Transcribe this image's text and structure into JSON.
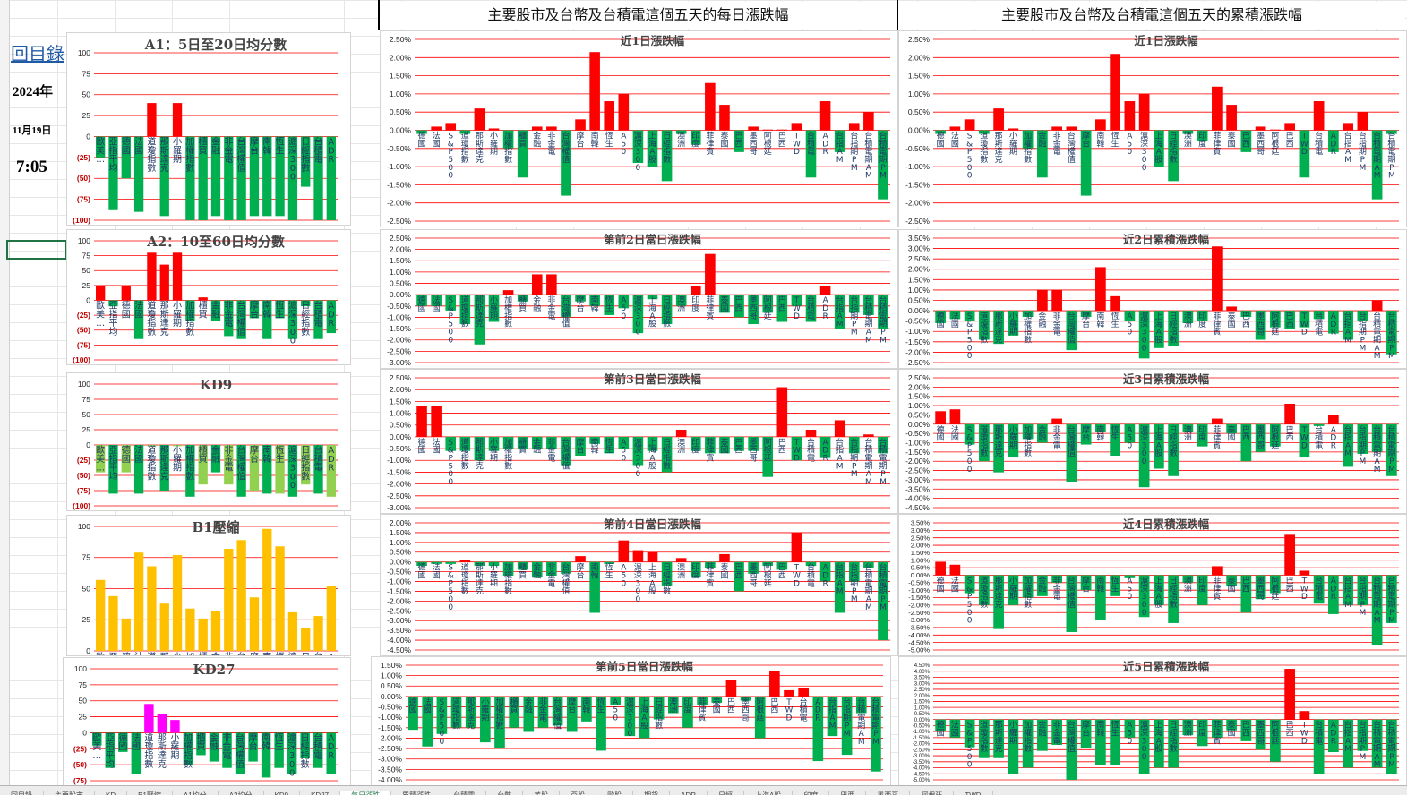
{
  "header": {
    "title_daily": "主要股市及台幣及台積電這個五天的每日漲跌幅",
    "title_cumulative": "主要股市及台幣及台積電這個五天的累積漲跌幅"
  },
  "info": {
    "menu_link": "回目錄",
    "year": "2024年",
    "date": "11月19日",
    "time": "7:05"
  },
  "sheet_tabs": [
    "回目錄",
    "主要股市",
    "KD",
    "B1壓縮",
    "A1均分",
    "A2均分",
    "KD9",
    "KD27",
    "每日漲跌",
    "累積漲跌",
    "台積電",
    "台幣",
    "美股",
    "亞股",
    "歐股",
    "期貨",
    "ADR",
    "日經",
    "上海A股",
    "印度",
    "巴西",
    "墨西哥",
    "阿根廷",
    "TWD"
  ],
  "colors": {
    "up": "#ff0000",
    "down": "#00b050",
    "down_light": "#92d050",
    "bar_yellow": "#ffc000",
    "bar_magenta": "#ff00ff",
    "gridline": "#ff0000",
    "neg_label": "#c00000"
  },
  "chart_data": [
    {
      "id": "a1",
      "type": "bar",
      "title": "A1：5日至20日均分數",
      "ylim": [
        -100,
        100
      ],
      "yticks": [
        100,
        75,
        50,
        25,
        0,
        -25,
        -50,
        -75,
        -100
      ],
      "ytick_labels": [
        "100",
        "75",
        "50",
        "25",
        "0",
        "(25)",
        "(50)",
        "(75)",
        "(100)"
      ],
      "categories": [
        "歐美…",
        "亞指平均",
        "德國",
        "法國",
        "道瓊指數",
        "那斯達克",
        "小羅期",
        "加權指數",
        "櫃買",
        "金融",
        "非金電",
        "台灣權值",
        "摩台",
        "南韓",
        "恆生",
        "滬深300",
        "日經指數",
        "台積電",
        "ADR"
      ],
      "values": [
        -25,
        -88,
        -50,
        -90,
        40,
        -95,
        40,
        -100,
        -100,
        -95,
        -100,
        -100,
        -95,
        -95,
        -95,
        -100,
        -60,
        -100,
        -100
      ],
      "label_top": false
    },
    {
      "id": "a2",
      "type": "bar",
      "title": "A2：10至60日均分數",
      "ylim": [
        -100,
        100
      ],
      "yticks": [
        100,
        75,
        50,
        25,
        0,
        -25,
        -50,
        -75,
        -100
      ],
      "ytick_labels": [
        "100",
        "75",
        "50",
        "25",
        "0",
        "(25)",
        "(50)",
        "(75)",
        "(100)"
      ],
      "categories": [
        "歐美…",
        "亞指平均",
        "德國",
        "法國",
        "道瓊指數",
        "那斯達克",
        "小羅期",
        "加權指數",
        "櫃買",
        "金融",
        "非金電",
        "台灣權值",
        "摩台",
        "南韓",
        "恆生",
        "滬深300",
        "日經指數",
        "台積電",
        "ADR"
      ],
      "values": [
        25,
        -10,
        25,
        -65,
        80,
        60,
        80,
        -35,
        5,
        -35,
        -60,
        -65,
        -30,
        -65,
        -30,
        -65,
        -10,
        -65,
        -55
      ],
      "label_top": false
    },
    {
      "id": "kd9",
      "type": "bar",
      "title": "KD9",
      "ylim": [
        -100,
        100
      ],
      "yticks": [
        100,
        75,
        50,
        25,
        0,
        -25,
        -50,
        -75,
        -100
      ],
      "ytick_labels": [
        "100",
        "75",
        "50",
        "25",
        "0",
        "(25)",
        "(50)",
        "(75)",
        "(100)"
      ],
      "categories": [
        "歐美…",
        "亞指平均",
        "德國",
        "法國",
        "道瓊指數",
        "那斯達克",
        "小羅期",
        "加權指數",
        "櫃買",
        "金融",
        "非金電",
        "台灣權值",
        "摩台",
        "南韓",
        "恆生",
        "滬深300",
        "日經指數",
        "台積電",
        "ADR"
      ],
      "values": [
        -45,
        -80,
        -45,
        -80,
        -2,
        -75,
        -2,
        -85,
        -65,
        -45,
        -65,
        -85,
        -75,
        -80,
        -80,
        -85,
        -65,
        -80,
        -85
      ],
      "label_top": false
    },
    {
      "id": "b1",
      "type": "bar",
      "title": "B1壓縮",
      "ylim": [
        0,
        100
      ],
      "yticks": [
        100,
        75,
        50,
        25,
        0
      ],
      "ytick_labels": [
        "100",
        "75",
        "50",
        "25",
        "0"
      ],
      "categories": [
        "歐美…",
        "亞指平均",
        "德國",
        "法國",
        "道瓊指數",
        "那斯達克",
        "小羅期",
        "加權指數",
        "櫃買",
        "金融",
        "非金電",
        "台灣權值",
        "摩台",
        "南韓",
        "恆生",
        "滬深300",
        "日經指數",
        "台積電",
        "ADR"
      ],
      "values": [
        57,
        44,
        26,
        79,
        68,
        38,
        77,
        34,
        26,
        32,
        82,
        89,
        43,
        98,
        84,
        31,
        18,
        28,
        52
      ],
      "label_top": false
    },
    {
      "id": "kd27",
      "type": "bar",
      "title": "KD27",
      "ylim": [
        -75,
        100
      ],
      "yticks": [
        100,
        75,
        50,
        25,
        0,
        -25,
        -50,
        -75
      ],
      "ytick_labels": [
        "100",
        "75",
        "50",
        "25",
        "0",
        "(25)",
        "(50)",
        "(75)"
      ],
      "categories": [
        "歐美…",
        "亞指平均",
        "德國",
        "法國",
        "道瓊指數",
        "那斯達克",
        "小羅期",
        "加權指數",
        "櫃買",
        "金融",
        "非金電",
        "台灣權值",
        "摩台",
        "南韓",
        "恆生",
        "滬深300",
        "日經指數",
        "台積電",
        "ADR"
      ],
      "values": [
        -20,
        -55,
        -30,
        -65,
        45,
        30,
        20,
        -50,
        -35,
        -45,
        -55,
        -65,
        -45,
        -70,
        -55,
        -65,
        -40,
        -55,
        -65
      ],
      "label_top": false
    },
    {
      "id": "d1",
      "type": "bar",
      "title": "近1日漲跌幅",
      "ylim": [
        -2.5,
        2.5
      ],
      "step": 0.5,
      "categories": [
        "德國",
        "法國",
        "S&P500",
        "道瓊指數",
        "那斯達克",
        "小羅期",
        "加權指數",
        "櫃買",
        "金融",
        "非金電",
        "台灣權值",
        "摩台",
        "南韓",
        "恆生",
        "A50",
        "滬深300",
        "上海A股",
        "日經指數",
        "澳洲",
        "印度",
        "菲律賓",
        "泰國",
        "巴西",
        "墨西哥",
        "阿根廷",
        "巴西",
        "TWD",
        "台積電",
        "ADR",
        "台指AM",
        "台指期PM",
        "台積電期AM",
        "台積電期PM"
      ],
      "values": [
        -0.1,
        0.1,
        0.2,
        -0.1,
        0.6,
        0.05,
        -0.5,
        -1.3,
        0.1,
        0.1,
        -1.8,
        0.3,
        2.15,
        0.8,
        1.0,
        -0.9,
        -1.0,
        -1.4,
        -0.1,
        -0.4,
        1.3,
        0.7,
        -0.6,
        0.1,
        0.02,
        0.02,
        0.2,
        -1.3,
        0.8,
        -0.6,
        0.2,
        0.5,
        -1.9
      ],
      "label_top": true
    },
    {
      "id": "d2",
      "type": "bar",
      "title": "第前2日當日漲跌幅",
      "ylim": [
        -3.0,
        2.5
      ],
      "step": 0.5,
      "categories": [
        "德國",
        "法國",
        "S&P500",
        "道瓊指數",
        "那斯達克",
        "小羅期",
        "加權指數",
        "櫃買",
        "金融",
        "非金電",
        "台灣權值",
        "摩台",
        "南韓",
        "恆生",
        "A50",
        "滬深300",
        "上海A股",
        "日經指數",
        "澳洲",
        "印度",
        "菲律賓",
        "泰國",
        "巴西",
        "墨西哥",
        "阿根廷",
        "巴西",
        "TWD",
        "台積電",
        "ADR",
        "台指AM",
        "台指期PM",
        "台積電期AM",
        "台積電期PM"
      ],
      "values": [
        -0.5,
        -0.5,
        -0.7,
        -1.3,
        -2.2,
        -1.2,
        0.2,
        -0.3,
        0.9,
        0.9,
        -1.0,
        -0.3,
        -0.5,
        -0.9,
        -0.6,
        -1.7,
        -0.2,
        -1.3,
        -0.5,
        0.4,
        1.8,
        -0.8,
        -1.0,
        -1.3,
        -0.8,
        -1.2,
        -0.5,
        -1.2,
        0.4,
        -1.5,
        -0.8,
        -0.9,
        -1.5
      ],
      "label_top": true
    },
    {
      "id": "d3",
      "type": "bar",
      "title": "第前3日當日漲跌幅",
      "ylim": [
        -3.0,
        2.5
      ],
      "step": 0.5,
      "categories": [
        "德國",
        "法國",
        "S&P500",
        "道瓊指數",
        "那斯達克",
        "小羅期",
        "加權指數",
        "櫃買",
        "金融",
        "非金電",
        "台灣權值",
        "摩台",
        "南韓",
        "恆生",
        "A50",
        "滬深300",
        "上海A股",
        "日經指數",
        "澳洲",
        "印度",
        "菲律賓",
        "泰國",
        "巴西",
        "墨西哥",
        "阿根廷",
        "巴西",
        "TWD",
        "台積電",
        "ADR",
        "台指AM",
        "台指期PM",
        "台積電期AM",
        "台積電期PM"
      ],
      "values": [
        1.3,
        1.3,
        -0.6,
        -0.6,
        -1.0,
        -0.6,
        -0.5,
        -0.5,
        -0.5,
        -0.5,
        -1.2,
        -0.8,
        -0.3,
        -0.7,
        -0.5,
        -1.2,
        -0.6,
        -1.5,
        0.3,
        -0.6,
        -0.7,
        -0.7,
        -0.6,
        -0.6,
        -1.7,
        2.1,
        -1.0,
        0.3,
        -0.9,
        0.7,
        -0.7,
        0.1,
        -0.7
      ],
      "label_top": true
    },
    {
      "id": "d4",
      "type": "bar",
      "title": "第前4日當日漲跌幅",
      "ylim": [
        -4.5,
        2.0
      ],
      "step": 0.5,
      "categories": [
        "德國",
        "法國",
        "S&P500",
        "道瓊指數",
        "那斯達克",
        "小羅期",
        "加權指數",
        "櫃買",
        "金融",
        "非金電",
        "台灣權值",
        "摩台",
        "南韓",
        "恆生",
        "A50",
        "滬深300",
        "上海A股",
        "日經指數",
        "澳洲",
        "印度",
        "菲律賓",
        "泰國",
        "巴西",
        "墨西哥",
        "阿根廷",
        "巴西",
        "TWD",
        "台積電",
        "ADR",
        "台指AM",
        "台指期PM",
        "台積電期AM",
        "台積電期PM"
      ],
      "values": [
        -0.2,
        -0.1,
        -0.1,
        0.1,
        -0.2,
        -0.2,
        -0.7,
        -0.4,
        -0.8,
        -0.7,
        -0.6,
        0.3,
        -2.6,
        -0.1,
        1.1,
        0.6,
        0.5,
        -1.2,
        0.2,
        -0.8,
        -0.3,
        0.4,
        -1.5,
        -0.6,
        -0.2,
        -0.4,
        1.5,
        -0.2,
        -1.0,
        -2.6,
        -1.0,
        -0.3,
        -4.0
      ],
      "label_top": true
    },
    {
      "id": "d5",
      "type": "bar",
      "title": "第前5日當日漲跌幅",
      "ylim": [
        -4.0,
        1.5
      ],
      "step": 0.5,
      "categories": [
        "德國",
        "法國",
        "S&P500",
        "道瓊指數",
        "那斯達克",
        "小羅期",
        "加權指數",
        "櫃買",
        "金融",
        "非金電",
        "台灣權值",
        "摩台",
        "南韓",
        "恆生",
        "A50",
        "滬深300",
        "上海A股",
        "日經指數",
        "澳洲",
        "印度",
        "菲律賓",
        "泰國",
        "巴西",
        "墨西哥",
        "阿根廷",
        "巴西",
        "TWD",
        "台積電",
        "ADR",
        "台指AM",
        "台指期PM",
        "台積電期AM",
        "台積電期PM"
      ],
      "values": [
        -1.6,
        -2.4,
        -1.8,
        -1.5,
        -1.5,
        -2.2,
        -2.5,
        -1.5,
        -1.7,
        -1.5,
        -1.4,
        -1.7,
        -1.2,
        -2.6,
        -0.4,
        -1.9,
        -2.0,
        -1.1,
        -0.8,
        -1.5,
        -0.4,
        -0.3,
        0.8,
        -0.2,
        -2.0,
        1.2,
        0.3,
        0.4,
        -3.1,
        -1.9,
        -2.8,
        -0.8,
        -3.6
      ],
      "label_top": true
    },
    {
      "id": "c1",
      "type": "bar",
      "title": "近1日漲跌幅",
      "ylim": [
        -2.5,
        2.5
      ],
      "step": 0.5,
      "categories": [
        "德國",
        "法國",
        "S&P500",
        "道瓊指數",
        "那斯達克",
        "小羅期",
        "加權指數",
        "金融",
        "非金電",
        "台灣權值",
        "摩台",
        "南韓",
        "恆生",
        "A50",
        "滬深300",
        "上海A股",
        "日經指數",
        "澳洲",
        "印度",
        "菲律賓",
        "泰國",
        "巴西",
        "墨西哥",
        "阿根廷",
        "巴西",
        "TWD",
        "台積電",
        "ADR",
        "台指AM",
        "台指期PM",
        "台積電期AM",
        "台積電期PM"
      ],
      "values": [
        -0.1,
        0.1,
        0.3,
        -0.1,
        0.6,
        0.05,
        -0.5,
        -1.3,
        0.1,
        0.1,
        -1.8,
        0.3,
        2.1,
        0.8,
        1.0,
        -1.0,
        -1.4,
        -0.1,
        -0.3,
        1.2,
        0.7,
        -0.6,
        0.1,
        0.02,
        0.2,
        -1.3,
        0.8,
        -0.6,
        0.2,
        0.5,
        -1.9,
        -0.1
      ],
      "label_top": true
    },
    {
      "id": "c2",
      "type": "bar",
      "title": "近2日累積漲跌幅",
      "ylim": [
        -2.5,
        3.5
      ],
      "step": 0.5,
      "categories": [
        "德國",
        "法國",
        "S&P500",
        "道瓊指數",
        "那斯達克",
        "小羅期",
        "加權指數",
        "金融",
        "非金電",
        "台灣權值",
        "摩台",
        "南韓",
        "恆生",
        "A50",
        "滬深300",
        "上海A股",
        "日經指數",
        "澳洲",
        "印度",
        "菲律賓",
        "泰國",
        "巴西",
        "墨西哥",
        "阿根廷",
        "巴西",
        "TWD",
        "台積電",
        "ADR",
        "台指AM",
        "台指期PM",
        "台積電期AM",
        "台積電期PM"
      ],
      "values": [
        -0.6,
        -0.4,
        -0.5,
        -1.4,
        -1.6,
        -1.2,
        -0.3,
        1.0,
        1.0,
        -1.9,
        -0.3,
        2.1,
        0.7,
        -0.5,
        -2.3,
        -1.8,
        -1.7,
        -0.6,
        -0.5,
        3.1,
        0.2,
        -0.3,
        -1.4,
        -0.8,
        -0.9,
        -0.8,
        -0.4,
        -1.1,
        -1.4,
        -0.5,
        0.5,
        -2.1
      ],
      "label_top": true
    },
    {
      "id": "c3",
      "type": "bar",
      "title": "近3日累積漲跌幅",
      "ylim": [
        -4.5,
        2.5
      ],
      "step": 0.5,
      "categories": [
        "德國",
        "法國",
        "S&P500",
        "道瓊指數",
        "那斯達克",
        "小羅期",
        "加權指數",
        "金融",
        "非金電",
        "台灣權值",
        "摩台",
        "南韓",
        "恆生",
        "A50",
        "滬深300",
        "上海A股",
        "日經指數",
        "澳洲",
        "印度",
        "菲律賓",
        "泰國",
        "巴西",
        "墨西哥",
        "阿根廷",
        "巴西",
        "TWD",
        "台積電",
        "ADR",
        "台指AM",
        "台指期PM",
        "台積電期AM",
        "台積電期PM"
      ],
      "values": [
        0.7,
        0.8,
        -1.1,
        -2.0,
        -2.6,
        -1.8,
        -0.8,
        -1.0,
        0.3,
        -3.1,
        -1.1,
        -0.4,
        -1.7,
        -1.0,
        -3.4,
        -2.4,
        -2.8,
        -0.4,
        -1.2,
        0.3,
        -0.5,
        -2.0,
        -1.5,
        -1.2,
        1.1,
        -1.8,
        -0.1,
        0.5,
        -2.3,
        -1.6,
        -1.5,
        -2.8
      ],
      "label_top": true
    },
    {
      "id": "c4",
      "type": "bar",
      "title": "近4日累積漲跌幅",
      "ylim": [
        -5.0,
        3.5
      ],
      "step": 0.5,
      "categories": [
        "德國",
        "法國",
        "S&P500",
        "道瓊指數",
        "那斯達克",
        "小羅期",
        "加權指數",
        "金融",
        "非金電",
        "台灣權值",
        "摩台",
        "南韓",
        "恆生",
        "A50",
        "滬深300",
        "上海A股",
        "日經指數",
        "澳洲",
        "印度",
        "菲律賓",
        "泰國",
        "巴西",
        "墨西哥",
        "阿根廷",
        "巴西",
        "TWD",
        "台積電",
        "ADR",
        "台指AM",
        "台指期PM",
        "台積電期AM",
        "台積電期PM"
      ],
      "values": [
        0.9,
        0.7,
        -1.2,
        -2.0,
        -3.6,
        -2.0,
        -1.5,
        -1.4,
        -0.5,
        -3.8,
        -1.0,
        -3.0,
        -1.4,
        -0.2,
        -2.8,
        -2.0,
        -3.2,
        -0.5,
        -2.0,
        0.6,
        -0.7,
        -2.5,
        -1.6,
        -1.2,
        2.7,
        0.3,
        -1.9,
        -2.6,
        -2.0,
        -2.0,
        -4.7,
        -3.2
      ],
      "label_top": true
    },
    {
      "id": "c5",
      "type": "bar",
      "title": "近5日累積漲跌幅",
      "ylim": [
        -5.0,
        4.5
      ],
      "step": 0.5,
      "categories": [
        "德國",
        "法國",
        "S&P500",
        "道瓊指數",
        "那斯達克",
        "小羅期",
        "加權指數",
        "金融",
        "非金電",
        "台灣權值",
        "摩台",
        "南韓",
        "恆生",
        "A50",
        "滬深300",
        "上海A股",
        "日經指數",
        "澳洲",
        "印度",
        "菲律賓",
        "泰國",
        "巴西",
        "墨西哥",
        "阿根廷",
        "巴西",
        "TWD",
        "台積電",
        "ADR",
        "台指AM",
        "台指期PM",
        "台積電期AM",
        "台積電期PM"
      ],
      "values": [
        -1.0,
        -1.5,
        -2.3,
        -3.2,
        -3.2,
        -4.5,
        -4.0,
        -2.6,
        -2.1,
        -5.0,
        -2.4,
        -3.8,
        -3.8,
        -1.5,
        -4.5,
        -4.0,
        -4.0,
        -1.3,
        -2.2,
        -1.5,
        -0.9,
        -1.8,
        -2.5,
        -3.5,
        4.2,
        0.7,
        -4.5,
        -2.7,
        -4.0,
        -2.6,
        -4.0,
        -4.5
      ],
      "label_top": true
    }
  ]
}
